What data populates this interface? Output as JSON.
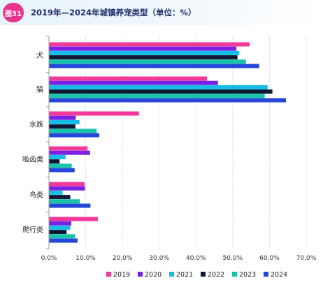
{
  "header": {
    "badge": "图31",
    "title": "2019年—2024年城镇养宠类型（单位：%）"
  },
  "colors": {
    "2019": "#f0399a",
    "2020": "#7a22e3",
    "2021": "#14bde7",
    "2022": "#0c1a36",
    "2023": "#17c3a9",
    "2024": "#2447d8",
    "grid": "#cfcfcf",
    "badge": "#e8348e"
  },
  "chart_data": {
    "type": "bar",
    "orientation": "horizontal",
    "categories": [
      "犬",
      "猫",
      "水族",
      "啮齿类",
      "鸟类",
      "爬行类"
    ],
    "series": [
      {
        "name": "2019",
        "values": [
          54.6,
          43.0,
          24.5,
          10.5,
          9.7,
          13.3
        ]
      },
      {
        "name": "2020",
        "values": [
          51.0,
          46.0,
          7.3,
          11.2,
          9.8,
          6.1
        ]
      },
      {
        "name": "2021",
        "values": [
          51.8,
          59.5,
          8.3,
          4.5,
          3.7,
          5.8
        ]
      },
      {
        "name": "2022",
        "values": [
          51.3,
          60.8,
          7.2,
          2.9,
          5.8,
          4.8
        ]
      },
      {
        "name": "2023",
        "values": [
          53.6,
          58.7,
          13.0,
          6.2,
          8.4,
          7.1
        ]
      },
      {
        "name": "2024",
        "values": [
          57.2,
          64.5,
          13.7,
          7.0,
          11.3,
          7.8
        ]
      }
    ],
    "xlim": [
      0,
      70
    ],
    "xticks": [
      "0.0%",
      "10.0%",
      "20.0%",
      "30.0%",
      "40.0%",
      "50.0%",
      "60.0%",
      "70.0%"
    ],
    "grid": true,
    "legend_position": "bottom"
  }
}
